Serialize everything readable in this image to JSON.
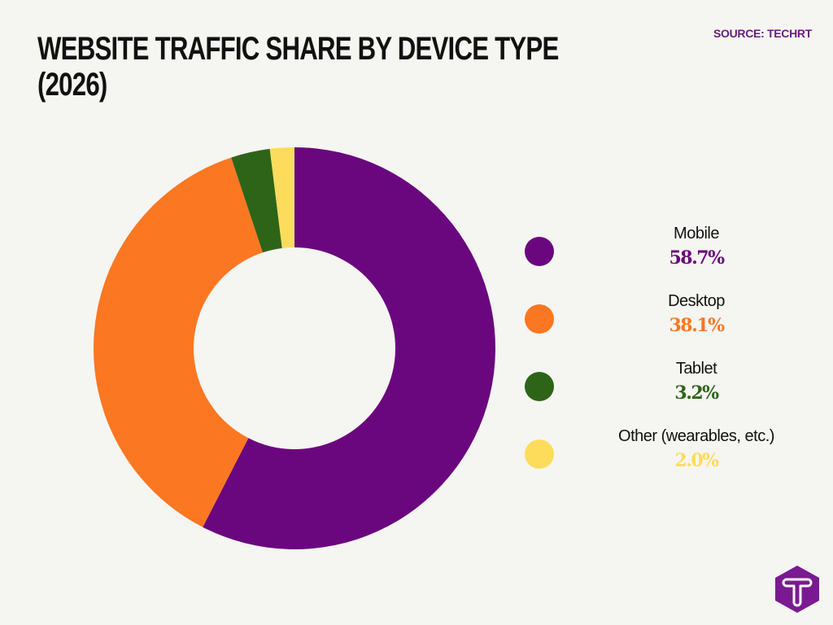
{
  "header": {
    "title_line1": "WEBSITE TRAFFIC SHARE BY DEVICE TYPE",
    "title_line2": "(2026)",
    "source": "SOURCE: TECHRT"
  },
  "legend": [
    {
      "label": "Mobile",
      "value": "58.7%",
      "color": "#6a077e"
    },
    {
      "label": "Desktop",
      "value": "38.1%",
      "color": "#fb7722"
    },
    {
      "label": "Tablet",
      "value": "3.2%",
      "color": "#2e6418"
    },
    {
      "label": "Other (wearables, etc.)",
      "value": "2.0%",
      "color": "#fddc5c"
    }
  ],
  "logo": {
    "glyph": "T",
    "color": "#7a1a92"
  },
  "chart_data": {
    "type": "pie",
    "subtype": "donut",
    "title": "WEBSITE TRAFFIC SHARE BY DEVICE TYPE (2026)",
    "source": "SOURCE: TECHRT",
    "categories": [
      "Mobile",
      "Desktop",
      "Tablet",
      "Other (wearables, etc.)"
    ],
    "values": [
      58.7,
      38.1,
      3.2,
      2.0
    ],
    "colors": [
      "#6a077e",
      "#fb7722",
      "#2e6418",
      "#fddc5c"
    ],
    "legend_position": "right",
    "start_angle": "12 o'clock, clockwise"
  }
}
